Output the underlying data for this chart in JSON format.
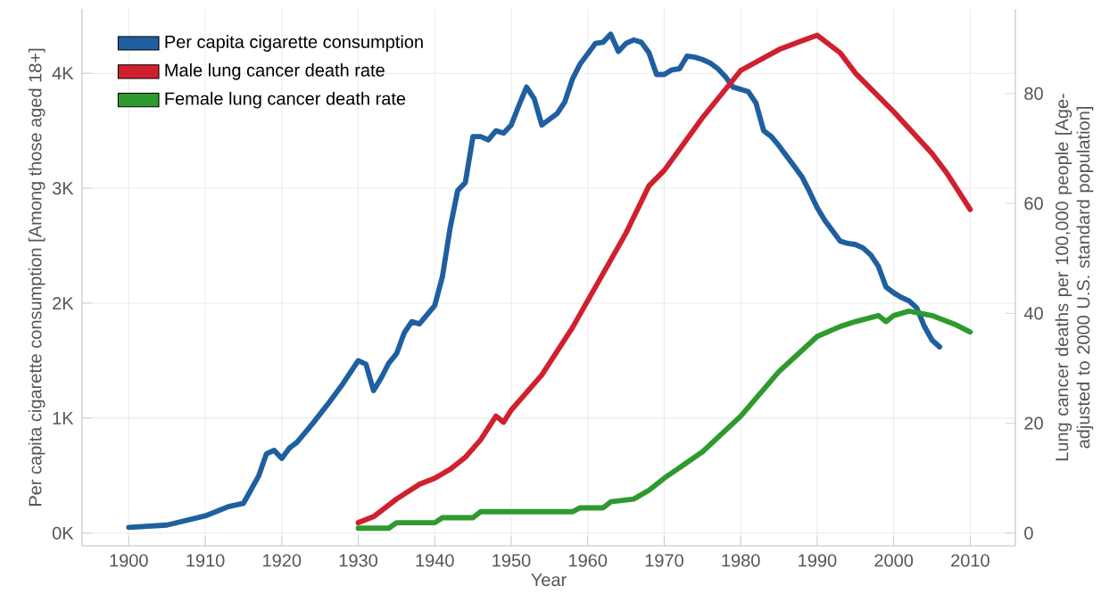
{
  "chart_data": {
    "type": "line",
    "xlabel": "Year",
    "ylabel": "Per capita cigarette consumption  [Among those aged 18+]",
    "y2label": "Lung cancer deaths per 100,000 people  [Age-adjusted to 2000 U.S. standard population]",
    "xlim": [
      1893.9,
      2015.9
    ],
    "xticks": [
      1900,
      1910,
      1920,
      1930,
      1940,
      1950,
      1960,
      1970,
      1980,
      1990,
      2000,
      2010
    ],
    "ylim": [
      -110,
      4560
    ],
    "yticks": [
      {
        "value": 0,
        "label": "0K"
      },
      {
        "value": 1000,
        "label": "1K"
      },
      {
        "value": 2000,
        "label": "2K"
      },
      {
        "value": 3000,
        "label": "3K"
      },
      {
        "value": 4000,
        "label": "4K"
      }
    ],
    "y2lim": [
      -2.3,
      95.4
    ],
    "y2ticks": [
      0,
      20,
      40,
      60,
      80
    ],
    "grid": true,
    "legend": "top left",
    "marker": "none",
    "line_style": "solid",
    "series": [
      {
        "name": "Per capita cigarette consumption",
        "color": "#1f5fa0",
        "x": [
          1900,
          1905,
          1910,
          1913,
          1915,
          1917,
          1918,
          1919,
          1920,
          1921,
          1922,
          1924,
          1926,
          1928,
          1930,
          1931,
          1932,
          1933,
          1934,
          1935,
          1936,
          1937,
          1938,
          1940,
          1941,
          1942,
          1943,
          1944,
          1945,
          1946,
          1947,
          1948,
          1949,
          1950,
          1951,
          1952,
          1953,
          1954,
          1955,
          1956,
          1957,
          1958,
          1959,
          1960,
          1961,
          1962,
          1963,
          1964,
          1965,
          1966,
          1967,
          1968,
          1969,
          1970,
          1971,
          1972,
          1973,
          1974,
          1975,
          1976,
          1977,
          1978,
          1979,
          1980,
          1981,
          1982,
          1983,
          1984,
          1985,
          1986,
          1987,
          1988,
          1989,
          1990,
          1991,
          1992,
          1993,
          1994,
          1995,
          1996,
          1997,
          1998,
          1999,
          2000,
          2001,
          2002,
          2003,
          2004,
          2005,
          2006
        ],
        "values": [
          50,
          70,
          150,
          230,
          260,
          500,
          690,
          720,
          650,
          740,
          790,
          950,
          1120,
          1300,
          1500,
          1470,
          1240,
          1350,
          1480,
          1560,
          1740,
          1840,
          1820,
          1980,
          2230,
          2650,
          2980,
          3050,
          3450,
          3450,
          3420,
          3500,
          3480,
          3550,
          3720,
          3880,
          3780,
          3550,
          3600,
          3650,
          3750,
          3950,
          4080,
          4170,
          4260,
          4270,
          4340,
          4190,
          4260,
          4290,
          4270,
          4180,
          3990,
          3990,
          4030,
          4040,
          4150,
          4140,
          4120,
          4090,
          4040,
          3970,
          3880,
          3860,
          3840,
          3740,
          3500,
          3450,
          3370,
          3280,
          3190,
          3100,
          2970,
          2830,
          2720,
          2630,
          2540,
          2520,
          2510,
          2480,
          2420,
          2320,
          2140,
          2090,
          2050,
          2020,
          1960,
          1800,
          1680,
          1620
        ]
      },
      {
        "name": "Male lung cancer death rate",
        "color": "#d0202e",
        "axis": "y2",
        "x": [
          1930,
          1932,
          1935,
          1938,
          1940,
          1942,
          1944,
          1946,
          1948,
          1949,
          1950,
          1952,
          1954,
          1956,
          1958,
          1960,
          1965,
          1968,
          1970,
          1975,
          1980,
          1985,
          1988,
          1990,
          1993,
          1995,
          2000,
          2005,
          2007,
          2010
        ],
        "values": [
          1.9,
          3,
          6.2,
          8.9,
          10,
          11.6,
          13.8,
          17,
          21.3,
          20.2,
          22.4,
          25.6,
          28.8,
          33.1,
          37.4,
          42.3,
          54.6,
          63.2,
          66,
          75.6,
          84.2,
          88,
          89.6,
          90.6,
          87.4,
          83.7,
          76.7,
          69.1,
          65.4,
          58.9
        ]
      },
      {
        "name": "Female lung cancer death rate",
        "color": "#2e9a2e",
        "axis": "y2",
        "x": [
          1930,
          1934,
          1935,
          1940,
          1941,
          1945,
          1946,
          1958,
          1959,
          1962,
          1963,
          1966,
          1968,
          1970,
          1975,
          1980,
          1985,
          1990,
          1993,
          1995,
          1998,
          1999,
          2000,
          2002,
          2005,
          2008,
          2010
        ],
        "values": [
          0.9,
          0.9,
          1.9,
          1.9,
          2.8,
          2.8,
          3.9,
          3.9,
          4.6,
          4.6,
          5.7,
          6.2,
          7.8,
          10,
          14.8,
          21.3,
          29.4,
          35.8,
          37.6,
          38.5,
          39.6,
          38.5,
          39.6,
          40.4,
          39.6,
          38,
          36.6
        ]
      }
    ]
  }
}
